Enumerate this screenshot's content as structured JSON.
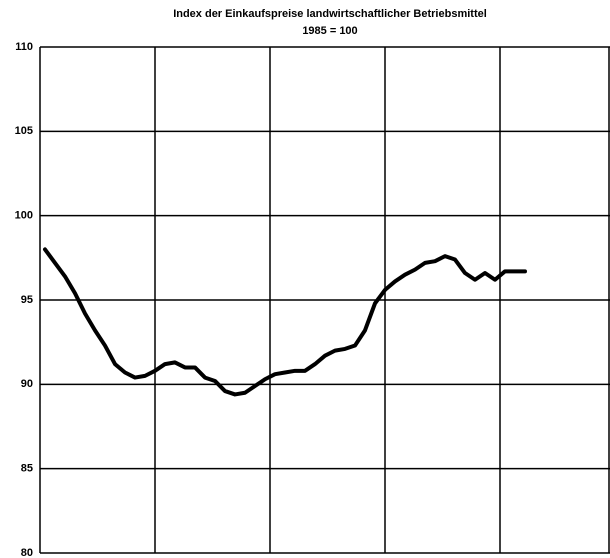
{
  "chart_data": {
    "type": "line",
    "title": "Index der Einkaufspreise landwirtschaftlicher Betriebsmittel",
    "subtitle": "1985 = 100",
    "categories": [
      null,
      null,
      null,
      null,
      null,
      null,
      null,
      null,
      null,
      null,
      null,
      null,
      null,
      null,
      null,
      null,
      null,
      null,
      null,
      null,
      null,
      null,
      null,
      null,
      null,
      null,
      null,
      null,
      null,
      null,
      null,
      null,
      null,
      null,
      null,
      null,
      null,
      null,
      null,
      null,
      null,
      null,
      null,
      null,
      null,
      null,
      null,
      null,
      null
    ],
    "series": [
      {
        "color": "#000000",
        "values": [
          98.0,
          97.2,
          96.4,
          95.4,
          94.2,
          93.2,
          92.3,
          91.2,
          90.7,
          90.4,
          90.5,
          90.8,
          91.2,
          91.3,
          91.0,
          91.0,
          90.4,
          90.2,
          89.6,
          89.4,
          89.5,
          89.9,
          90.3,
          90.6,
          90.7,
          90.8,
          90.8,
          91.2,
          91.7,
          92.0,
          92.1,
          92.3,
          93.2,
          94.8,
          95.6,
          96.1,
          96.5,
          96.8,
          97.2,
          97.3,
          97.6,
          97.4,
          96.6,
          96.2,
          96.6,
          96.2,
          96.7,
          96.7,
          96.7
        ]
      }
    ],
    "ylim": [
      80,
      110
    ],
    "yticks": [
      80,
      85,
      90,
      95,
      100,
      105,
      110
    ],
    "grid": true
  }
}
